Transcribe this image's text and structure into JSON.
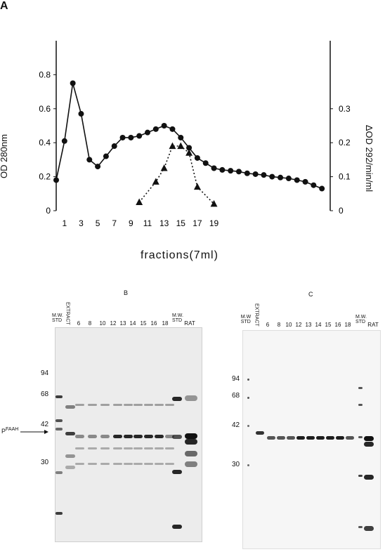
{
  "panel_a": {
    "label": "A",
    "chart_data": {
      "type": "line",
      "xlabel": "fractions(7ml)",
      "ylabel_left": "OD 280nm",
      "ylabel_right": "ΔOD 292/min/ml",
      "x_tick_labels": [
        "1",
        "3",
        "5",
        "7",
        "9",
        "11",
        "13",
        "15",
        "17",
        "19"
      ],
      "y_left_ticks": [
        "0",
        "0.2",
        "0.4",
        "0.6",
        "0.8"
      ],
      "y_right_ticks": [
        "0",
        "0.1",
        "0.2",
        "0.3"
      ],
      "ylim_left": [
        0,
        1.0
      ],
      "ylim_right": [
        0,
        0.5
      ],
      "xlim": [
        0,
        33
      ],
      "series": [
        {
          "marker": "circle",
          "line": "solid",
          "axis": "left",
          "x": [
            0,
            1,
            2,
            3,
            4,
            5,
            6,
            7,
            8,
            9,
            10,
            11,
            12,
            13,
            14,
            15,
            16,
            17,
            18,
            19,
            20,
            21,
            22,
            23,
            24,
            25,
            26,
            27,
            28,
            29,
            30,
            31,
            32
          ],
          "y": [
            0.18,
            0.41,
            0.75,
            0.57,
            0.3,
            0.26,
            0.32,
            0.38,
            0.43,
            0.43,
            0.44,
            0.46,
            0.48,
            0.5,
            0.48,
            0.43,
            0.37,
            0.31,
            0.28,
            0.25,
            0.24,
            0.235,
            0.23,
            0.22,
            0.215,
            0.21,
            0.2,
            0.195,
            0.19,
            0.18,
            0.17,
            0.15,
            0.13
          ]
        },
        {
          "marker": "triangle",
          "line": "dotted",
          "axis": "right",
          "x": [
            10,
            12,
            13,
            14,
            15,
            16,
            17,
            19
          ],
          "y": [
            0.025,
            0.085,
            0.125,
            0.19,
            0.19,
            0.17,
            0.07,
            0.02
          ]
        }
      ]
    }
  },
  "panel_b": {
    "label": "B",
    "lane_labels": [
      "M.W.\nSTD",
      "EXTRACT",
      "6",
      "8",
      "10",
      "12",
      "13",
      "14",
      "15",
      "16",
      "18",
      "M.W.\nSTD",
      "RAT"
    ],
    "mw_markers": [
      "94",
      "68",
      "42",
      "30"
    ],
    "arrow_label": "P",
    "arrow_superscript": "FAAH"
  },
  "panel_c": {
    "label": "C",
    "lane_labels": [
      "M.W\nSTD",
      "EXTRACT",
      "6",
      "8",
      "10",
      "12",
      "13",
      "14",
      "15",
      "16",
      "18",
      "M.W.\nSTD",
      "RAT"
    ],
    "mw_markers": [
      "94",
      "68",
      "42",
      "30"
    ]
  }
}
